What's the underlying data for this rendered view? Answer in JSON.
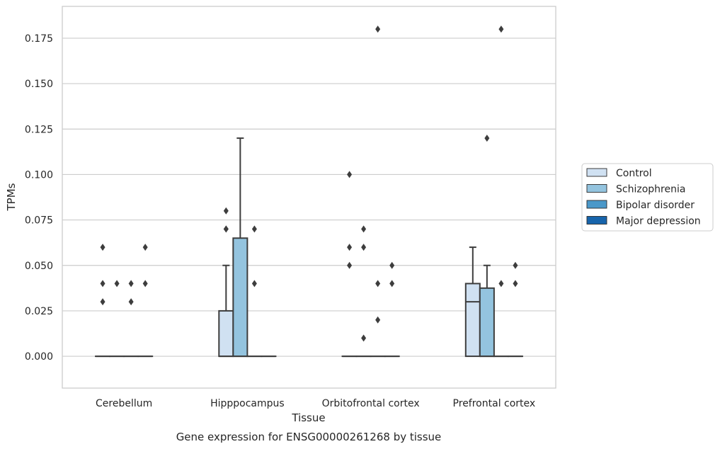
{
  "chart_data": {
    "type": "box",
    "title": "Gene expression for ENSG00000261268 by tissue",
    "xlabel": "Tissue",
    "ylabel": "TPMs",
    "ylim": [
      -0.0175,
      0.1925
    ],
    "yticks": [
      "0.000",
      "0.025",
      "0.050",
      "0.075",
      "0.100",
      "0.125",
      "0.150",
      "0.175"
    ],
    "ytick_values": [
      0,
      0.025,
      0.05,
      0.075,
      0.1,
      0.125,
      0.15,
      0.175
    ],
    "categories": [
      "Cerebellum",
      "Hipppocampus",
      "Orbitofrontal cortex",
      "Prefrontal cortex"
    ],
    "grid": "horizontal",
    "legend_position": "right",
    "series": [
      {
        "name": "Control",
        "color": "#d0e1f2",
        "boxes": [
          {
            "q1": 0,
            "median": 0,
            "q3": 0,
            "whislo": 0,
            "whishi": 0,
            "fliers": [
              0.03,
              0.04,
              0.06
            ]
          },
          {
            "q1": 0,
            "median": 0,
            "q3": 0.025,
            "whislo": 0,
            "whishi": 0.05,
            "fliers": [
              0.07,
              0.07,
              0.08
            ]
          },
          {
            "q1": 0,
            "median": 0,
            "q3": 0,
            "whislo": 0,
            "whishi": 0,
            "fliers": [
              0.05,
              0.06,
              0.1
            ]
          },
          {
            "q1": 0,
            "median": 0.03,
            "q3": 0.04,
            "whislo": 0,
            "whishi": 0.06,
            "fliers": []
          }
        ]
      },
      {
        "name": "Schizophrenia",
        "color": "#94c4df",
        "boxes": [
          {
            "q1": 0,
            "median": 0,
            "q3": 0,
            "whislo": 0,
            "whishi": 0,
            "fliers": [
              0.04
            ]
          },
          {
            "q1": 0,
            "median": 0,
            "q3": 0.065,
            "whislo": 0,
            "whishi": 0.12,
            "fliers": []
          },
          {
            "q1": 0,
            "median": 0,
            "q3": 0,
            "whislo": 0,
            "whishi": 0,
            "fliers": [
              0.06,
              0.07,
              0.01
            ]
          },
          {
            "q1": 0,
            "median": 0,
            "q3": 0.0375,
            "whislo": 0,
            "whishi": 0.05,
            "fliers": [
              0.12
            ]
          }
        ]
      },
      {
        "name": "Bipolar disorder",
        "color": "#4a98c9",
        "boxes": [
          {
            "q1": 0,
            "median": 0,
            "q3": 0,
            "whislo": 0,
            "whishi": 0,
            "fliers": [
              0.03,
              0.04
            ]
          },
          {
            "q1": 0,
            "median": 0,
            "q3": 0,
            "whislo": 0,
            "whishi": 0,
            "fliers": [
              0.04,
              0.07
            ]
          },
          {
            "q1": 0,
            "median": 0,
            "q3": 0,
            "whislo": 0,
            "whishi": 0,
            "fliers": [
              0.02,
              0.04,
              0.18
            ]
          },
          {
            "q1": 0,
            "median": 0,
            "q3": 0,
            "whislo": 0,
            "whishi": 0,
            "fliers": [
              0.04,
              0.18
            ]
          }
        ]
      },
      {
        "name": "Major depression",
        "color": "#1764ab",
        "boxes": [
          {
            "q1": 0,
            "median": 0,
            "q3": 0,
            "whislo": 0,
            "whishi": 0,
            "fliers": [
              0.04,
              0.06
            ]
          },
          {
            "q1": 0,
            "median": 0,
            "q3": 0,
            "whislo": 0,
            "whishi": 0,
            "fliers": []
          },
          {
            "q1": 0,
            "median": 0,
            "q3": 0,
            "whislo": 0,
            "whishi": 0,
            "fliers": [
              0.04,
              0.05
            ]
          },
          {
            "q1": 0,
            "median": 0,
            "q3": 0,
            "whislo": 0,
            "whishi": 0,
            "fliers": [
              0.04,
              0.05
            ]
          }
        ]
      }
    ]
  }
}
